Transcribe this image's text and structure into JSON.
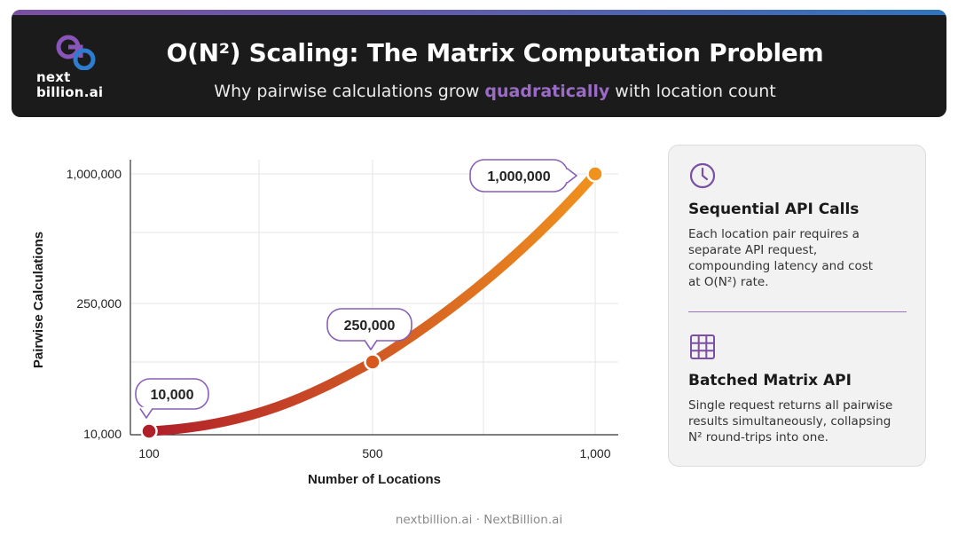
{
  "header": {
    "logo_line1": "next",
    "logo_line2": "billion.ai",
    "title": "O(N²) Scaling: The Matrix Computation Problem",
    "subtitle_pre": "Why pairwise calculations grow ",
    "subtitle_highlight": "quadratically",
    "subtitle_post": " with location count"
  },
  "colors": {
    "accent_purple": "#7b4fa3",
    "curve_start": "#b01e2a",
    "curve_end": "#f0921e",
    "header_bg": "#1b1b1b"
  },
  "chart_data": {
    "type": "line",
    "xlabel": "Number of Locations",
    "ylabel": "Pairwise Calculations",
    "x_ticks": [
      "100",
      "500",
      "1,000"
    ],
    "y_ticks": [
      "10,000",
      "250,000",
      "1,000,000"
    ],
    "series": [
      {
        "x": [
          100,
          500,
          1000
        ],
        "y": [
          10000,
          250000,
          1000000
        ]
      }
    ],
    "annotations": [
      "10,000",
      "250,000",
      "1,000,000"
    ],
    "grid": true
  },
  "card": {
    "section1_icon": "clock-icon",
    "section1_title": "Sequential API Calls",
    "section1_line1": "Each location pair requires a",
    "section1_line2": "separate API request,",
    "section1_line3": "compounding latency and cost",
    "section1_line4": "at O(N²) rate.",
    "section2_icon": "grid-icon",
    "section2_title": "Batched Matrix API",
    "section2_line1": "Single request returns all pairwise",
    "section2_line2": "results simultaneously, collapsing",
    "section2_line3": "N² round-trips into one."
  },
  "footer": {
    "text": "nextbillion.ai · NextBillion.ai"
  }
}
